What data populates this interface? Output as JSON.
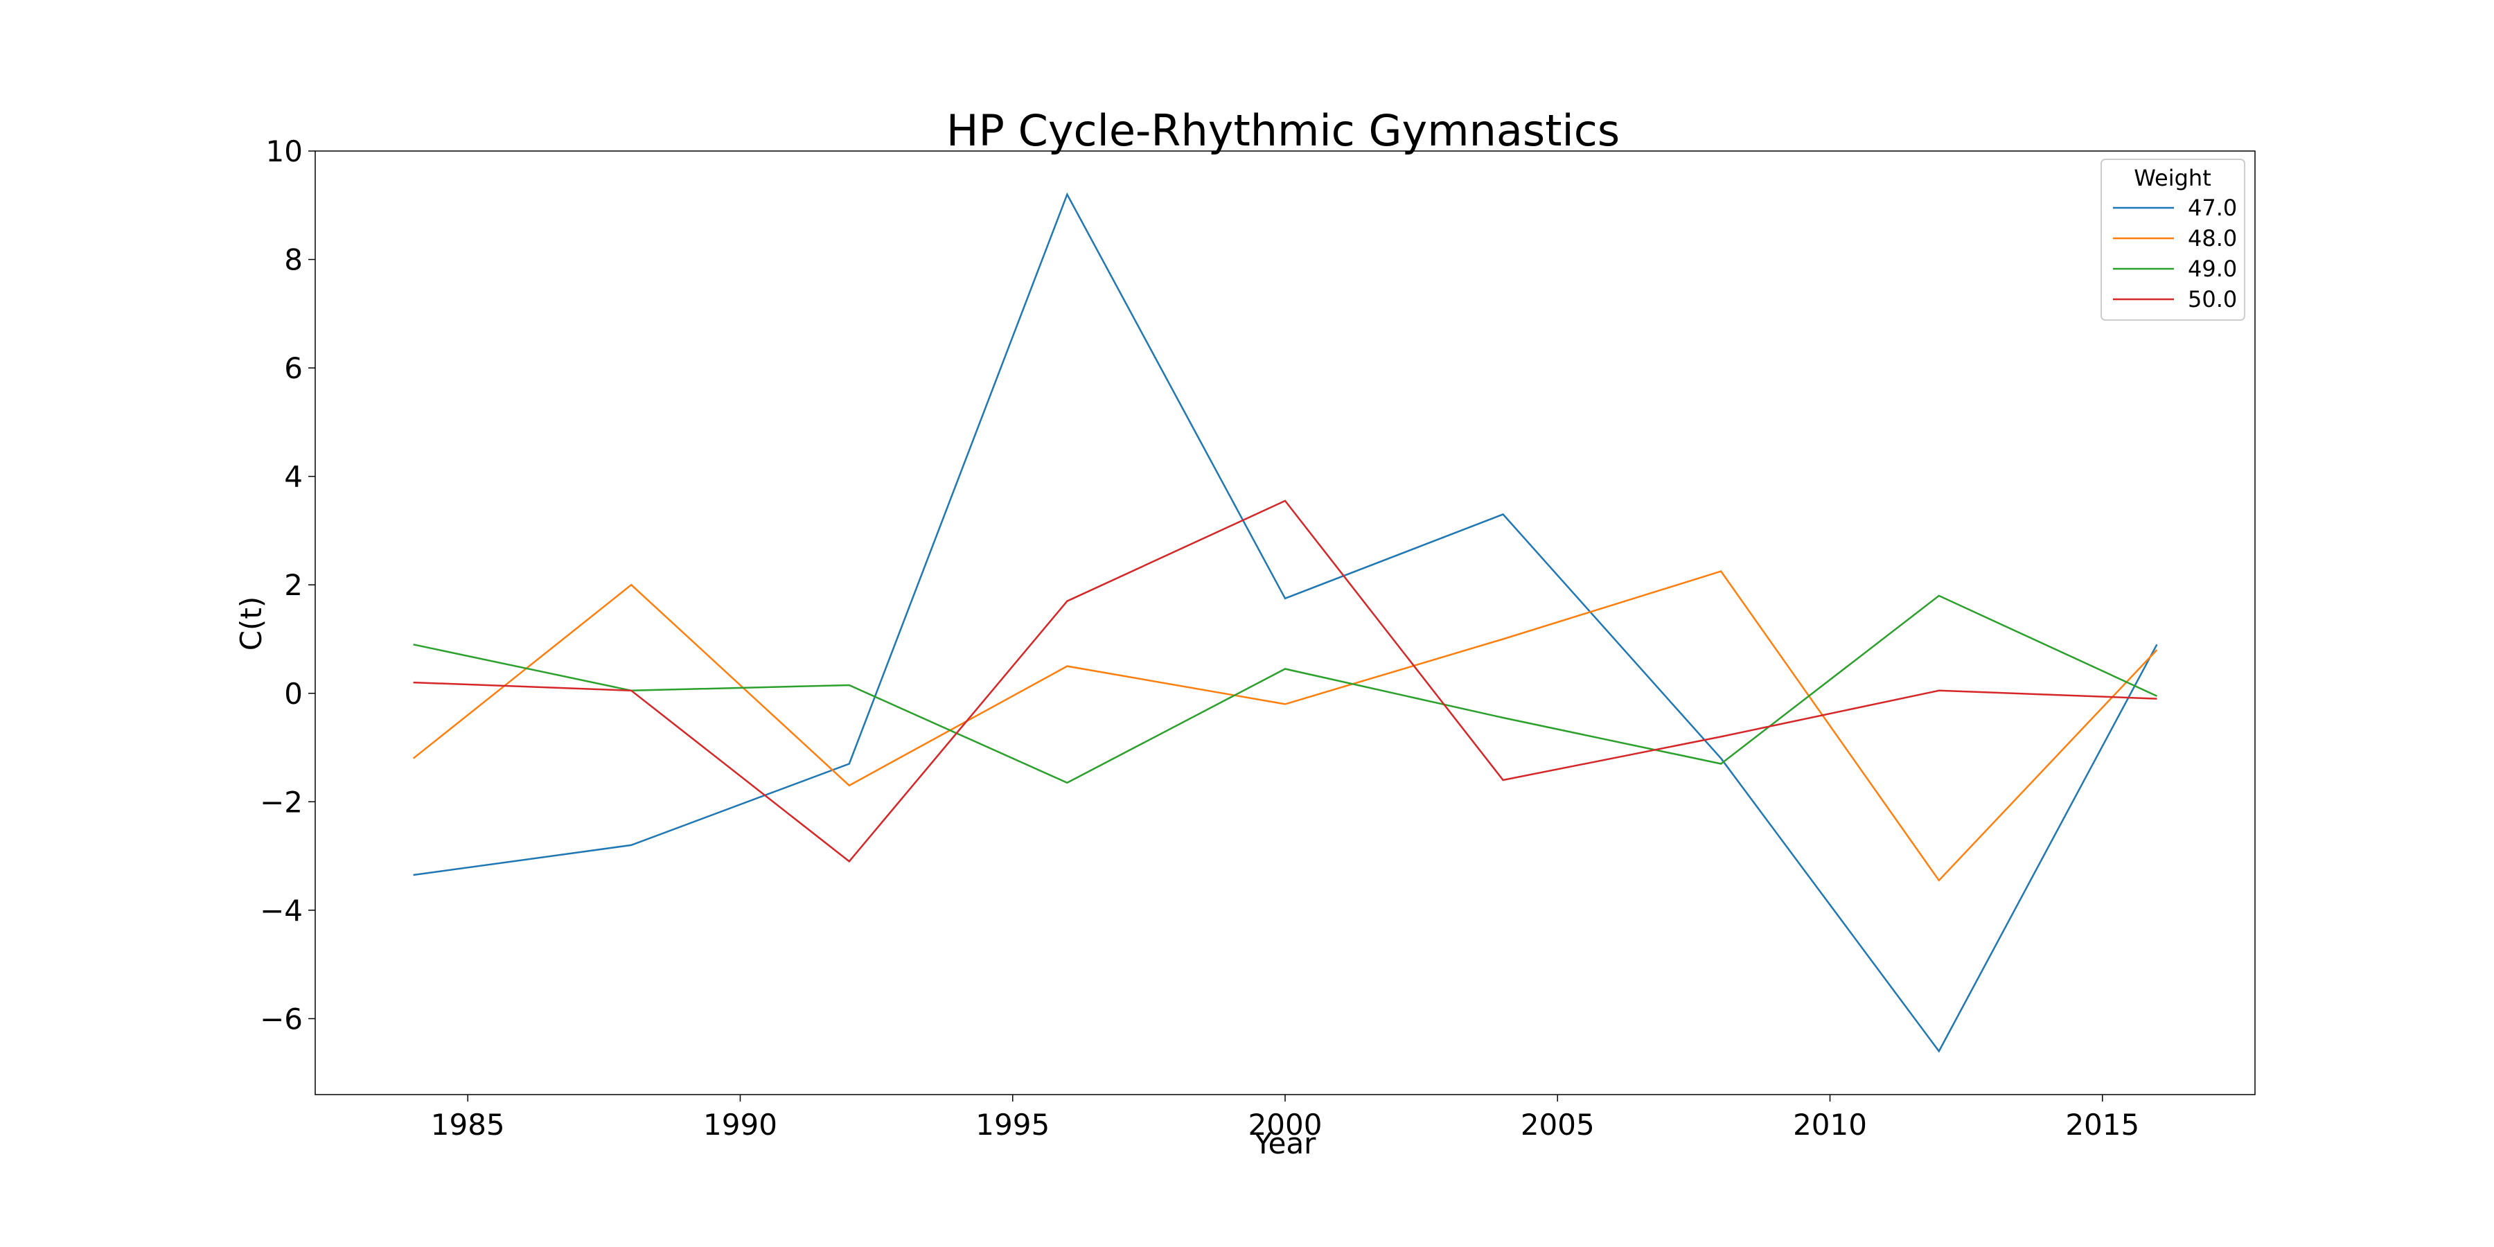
{
  "chart_data": {
    "type": "line",
    "title": "HP Cycle-Rhythmic Gymnastics",
    "xlabel": "Year",
    "ylabel": "C(t)",
    "xlim": [
      1982.2,
      2017.8
    ],
    "ylim": [
      -7.4,
      10.0
    ],
    "xticks": [
      1985,
      1990,
      1995,
      2000,
      2005,
      2010,
      2015
    ],
    "xtick_labels": [
      "1985",
      "1990",
      "1995",
      "2000",
      "2005",
      "2010",
      "2015"
    ],
    "yticks": [
      -6,
      -4,
      -2,
      0,
      2,
      4,
      6,
      8,
      10
    ],
    "ytick_labels": [
      "−6",
      "−4",
      "−2",
      "0",
      "2",
      "4",
      "6",
      "8",
      "10"
    ],
    "grid": false,
    "legend": {
      "title": "Weight",
      "placement": "top-right"
    },
    "x": [
      1984,
      1988,
      1992,
      1996,
      2000,
      2004,
      2008,
      2012,
      2016
    ],
    "series": [
      {
        "name": "47.0",
        "color": "#1f77b4",
        "values": [
          -3.35,
          -2.8,
          -1.3,
          9.2,
          1.75,
          3.3,
          -1.2,
          -6.6,
          0.9
        ]
      },
      {
        "name": "48.0",
        "color": "#ff7f0e",
        "values": [
          -1.2,
          2.0,
          -1.7,
          0.5,
          -0.2,
          1.0,
          2.25,
          -3.45,
          0.8
        ]
      },
      {
        "name": "49.0",
        "color": "#2ca02c",
        "values": [
          0.9,
          0.05,
          0.15,
          -1.65,
          0.45,
          -0.45,
          -1.3,
          1.8,
          -0.05
        ]
      },
      {
        "name": "50.0",
        "color": "#d62728",
        "values": [
          0.2,
          0.05,
          -3.1,
          1.7,
          3.55,
          -1.6,
          -0.8,
          0.05,
          -0.1
        ]
      }
    ]
  }
}
